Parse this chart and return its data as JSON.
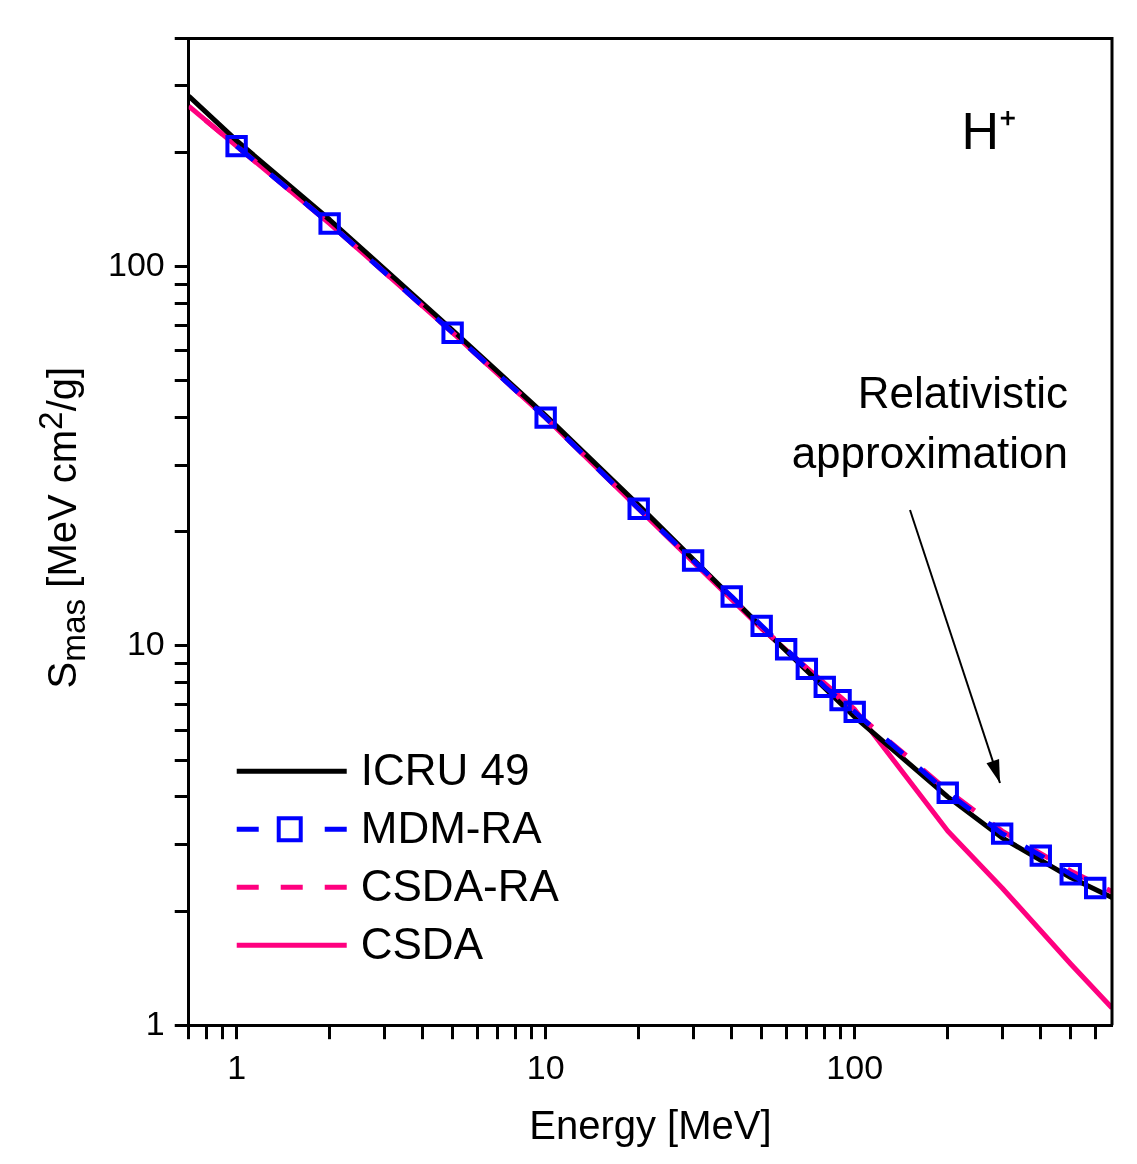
{
  "chart_data": {
    "type": "line",
    "xlabel": "Energy [MeV]",
    "ylabel": "S$_{mas}$ [MeV cm$^{2}$/g]",
    "log": "xy",
    "grid": false,
    "legend": "bottom left",
    "xlim": [
      0.7,
      680
    ],
    "ylim": [
      1,
      400
    ],
    "xticks": [
      {
        "value": 0.7,
        "label": null
      },
      {
        "value": 0.8,
        "label": null
      },
      {
        "value": 0.9,
        "label": null
      },
      1,
      {
        "value": 2,
        "label": null
      },
      {
        "value": 3,
        "label": null
      },
      {
        "value": 4,
        "label": null
      },
      {
        "value": 5,
        "label": null
      },
      {
        "value": 6,
        "label": null
      },
      {
        "value": 7,
        "label": null
      },
      {
        "value": 8,
        "label": null
      },
      {
        "value": 9,
        "label": null
      },
      10,
      {
        "value": 20,
        "label": null
      },
      {
        "value": 30,
        "label": null
      },
      {
        "value": 40,
        "label": null
      },
      {
        "value": 50,
        "label": null
      },
      {
        "value": 60,
        "label": null
      },
      {
        "value": 70,
        "label": null
      },
      {
        "value": 80,
        "label": null
      },
      {
        "value": 90,
        "label": null
      },
      100,
      {
        "value": 200,
        "label": null
      },
      {
        "value": 300,
        "label": null
      },
      {
        "value": 400,
        "label": null
      },
      {
        "value": 500,
        "label": null
      },
      {
        "value": 600,
        "label": null
      }
    ],
    "yticks": [
      1,
      {
        "value": 2,
        "label": null
      },
      {
        "value": 3,
        "label": null
      },
      {
        "value": 4,
        "label": null
      },
      {
        "value": 5,
        "label": null
      },
      {
        "value": 6,
        "label": null
      },
      {
        "value": 7,
        "label": null
      },
      {
        "value": 8,
        "label": null
      },
      {
        "value": 9,
        "label": null
      },
      10,
      {
        "value": 20,
        "label": null
      },
      {
        "value": 30,
        "label": null
      },
      {
        "value": 40,
        "label": null
      },
      {
        "value": 50,
        "label": null
      },
      {
        "value": 60,
        "label": null
      },
      {
        "value": 70,
        "label": null
      },
      {
        "value": 80,
        "label": null
      },
      {
        "value": 90,
        "label": null
      },
      100,
      {
        "value": 200,
        "label": null
      },
      {
        "value": 300,
        "label": null
      },
      {
        "value": 400,
        "label": null
      }
    ],
    "series": [
      {
        "name": "ICRU 49",
        "color": "#000000",
        "line_style": "solid",
        "marker": "none",
        "x": [
          0.7,
          1,
          2,
          5,
          10,
          20,
          50,
          100,
          200,
          300,
          500,
          680
        ],
        "values": [
          282,
          215,
          133,
          68,
          40.5,
          23.5,
          11.2,
          6.5,
          4.0,
          3.12,
          2.45,
          2.17
        ]
      },
      {
        "name": "MDM-RA",
        "color": "#0000ff",
        "line_style": "dashed",
        "marker": "square",
        "x": [
          1,
          2,
          5,
          10,
          20,
          30,
          40,
          50,
          60,
          70,
          80,
          90,
          100,
          200,
          300,
          400,
          500,
          600
        ],
        "values": [
          208,
          130,
          67,
          40,
          23,
          16.8,
          13.5,
          11.3,
          9.8,
          8.7,
          7.8,
          7.2,
          6.7,
          4.1,
          3.2,
          2.8,
          2.5,
          2.3
        ]
      },
      {
        "name": "CSDA-RA",
        "color": "#ff007f",
        "line_style": "dashed",
        "marker": "none",
        "x": [
          0.7,
          1,
          2,
          5,
          10,
          20,
          50,
          100,
          200,
          300,
          500,
          680
        ],
        "values": [
          265,
          208,
          130,
          67,
          40,
          23,
          11.2,
          6.7,
          4.15,
          3.25,
          2.55,
          2.25
        ]
      },
      {
        "name": "CSDA",
        "color": "#ff007f",
        "line_style": "solid",
        "marker": "none",
        "x": [
          0.7,
          1,
          2,
          5,
          10,
          20,
          50,
          100,
          200,
          300,
          500,
          680
        ],
        "values": [
          265,
          208,
          130,
          67,
          40,
          23,
          11.1,
          6.8,
          3.25,
          2.3,
          1.45,
          1.11
        ]
      }
    ],
    "annotations": [
      "H⁺",
      "Relativistic approximation"
    ]
  }
}
